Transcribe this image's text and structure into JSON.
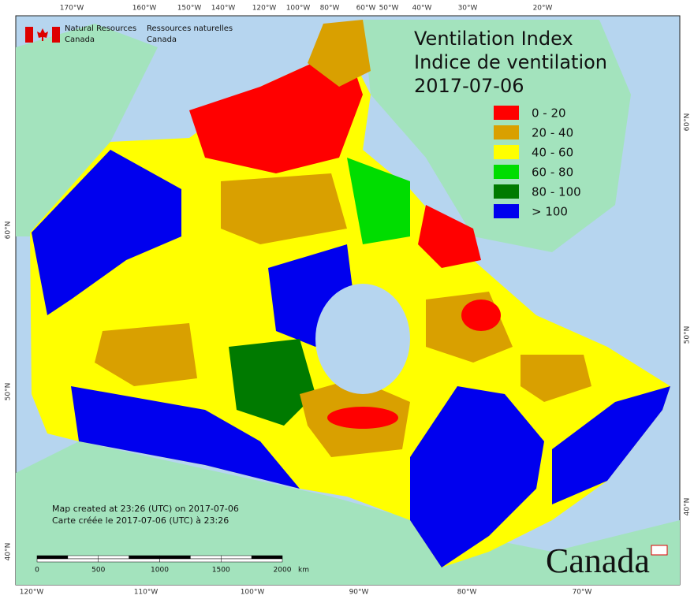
{
  "header": {
    "department_en": "Natural Resources",
    "country_en": "Canada",
    "department_fr": "Ressources naturelles",
    "country_fr": "Canada"
  },
  "title": {
    "line1": "Ventilation Index",
    "line2": "Indice de ventilation",
    "date": "2017-07-06"
  },
  "legend": [
    {
      "label": "0 - 20",
      "color": "#ff0000"
    },
    {
      "label": "20 - 40",
      "color": "#d9a000"
    },
    {
      "label": "40 - 60",
      "color": "#ffff00"
    },
    {
      "label": "60 - 80",
      "color": "#00dd00"
    },
    {
      "label": "80 - 100",
      "color": "#007a00"
    },
    {
      "label": "> 100",
      "color": "#0000ee"
    }
  ],
  "top_labels": [
    "170°W",
    "160°W",
    "150°W",
    "140°W",
    "120°W",
    "100°W",
    "80°W",
    "60°W",
    "50°W",
    "40°W",
    "30°W",
    "20°W"
  ],
  "bottom_labels": [
    "120°W",
    "110°W",
    "100°W",
    "90°W",
    "80°W",
    "70°W"
  ],
  "left_labels": [
    "60°N",
    "50°N",
    "40°N"
  ],
  "right_labels": [
    "60°N",
    "50°N",
    "40°N"
  ],
  "credits": {
    "en": "Map created at 23:26 (UTC) on 2017-07-06",
    "fr": "Carte créée le 2017-07-06 (UTC) à 23:26"
  },
  "scale_bar": {
    "labels": [
      "0",
      "500",
      "1000",
      "1500",
      "2000"
    ],
    "unit": "km"
  },
  "wordmark": "Canada"
}
